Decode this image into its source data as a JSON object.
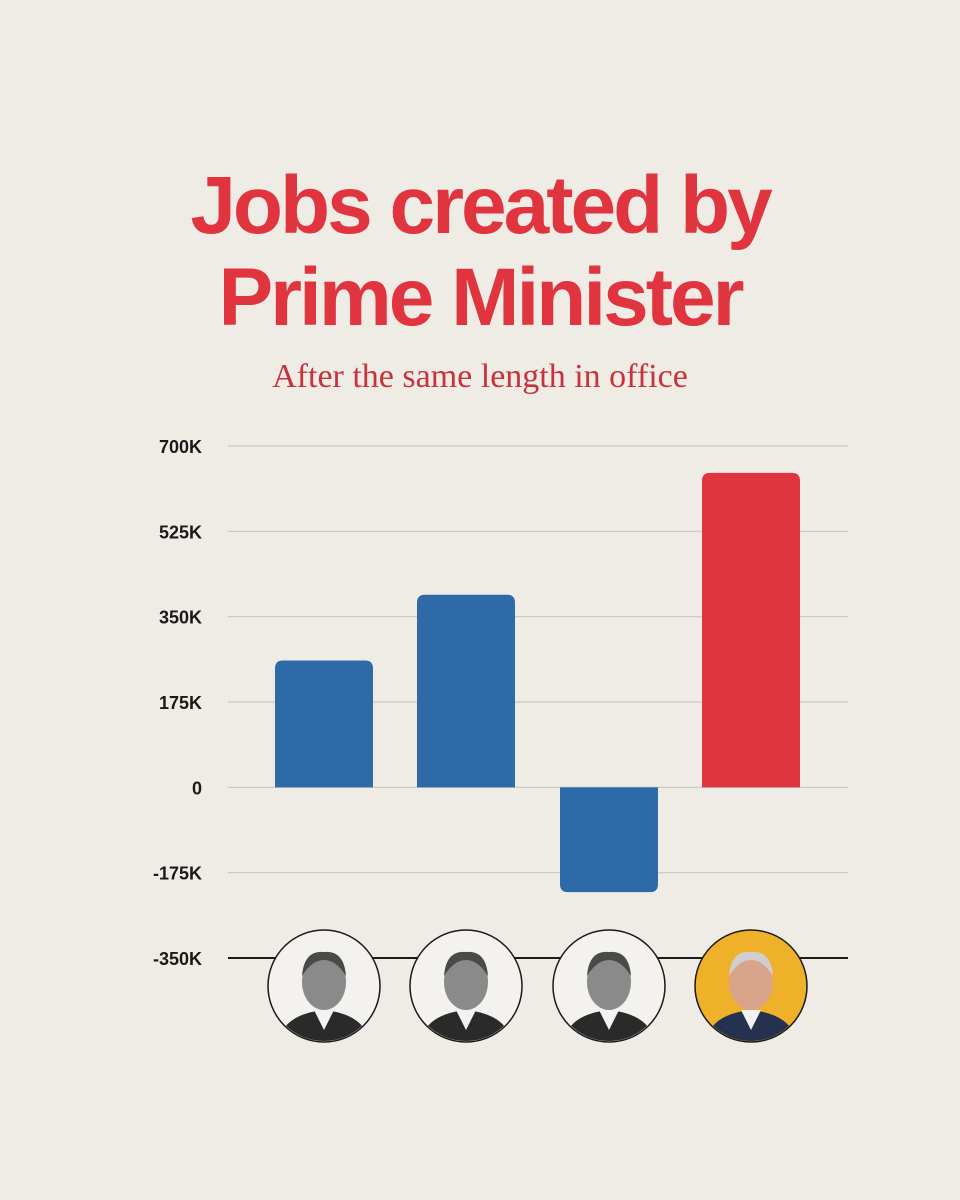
{
  "title_line1": "Jobs created by",
  "title_line2": "Prime Minister",
  "subtitle": "After the same length in office",
  "colors": {
    "title": "#e0343f",
    "blue": "#2f6aa8",
    "red": "#e0343f",
    "highlight_bg": "#f0b12a",
    "grid": "#c9c6c0"
  },
  "chart_data": {
    "type": "bar",
    "categories": [
      "",
      "",
      "",
      ""
    ],
    "values": [
      260000,
      395000,
      -215000,
      645000
    ],
    "bar_colors": [
      "#2f6aa8",
      "#2f6aa8",
      "#2f6aa8",
      "#e0343f"
    ],
    "ylim": [
      -350000,
      700000
    ],
    "y_ticks": [
      700000,
      525000,
      350000,
      175000,
      0,
      -175000,
      -350000
    ],
    "y_tick_labels": [
      "700K",
      "525K",
      "350K",
      "175K",
      "0",
      "-175K",
      "-350K"
    ],
    "grid": true,
    "category_markers": [
      "portrait-1-icon",
      "portrait-2-icon",
      "portrait-3-icon",
      "portrait-4-icon"
    ]
  }
}
